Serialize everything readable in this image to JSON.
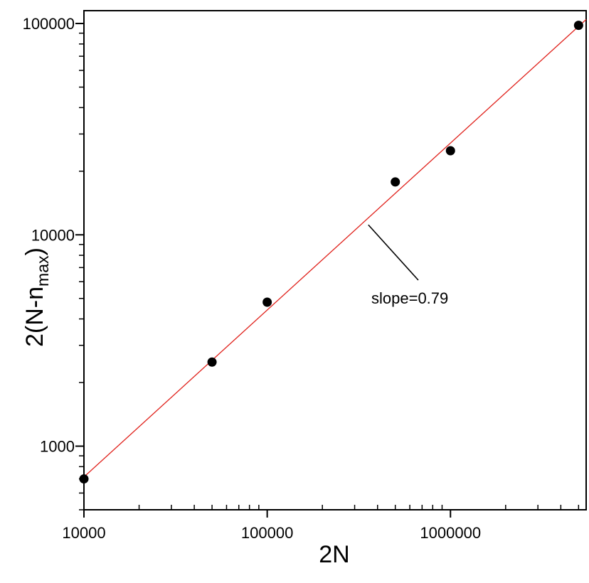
{
  "chart_data": {
    "type": "scatter",
    "title": "",
    "xlabel": "2N",
    "ylabel_main": "2(N-n",
    "ylabel_sub": "max",
    "ylabel_close": ")",
    "x_scale": "log",
    "y_scale": "log",
    "xlim": [
      10000,
      5500000
    ],
    "ylim": [
      500,
      115000
    ],
    "x_ticks": [
      {
        "value": 10000,
        "label": "10000"
      },
      {
        "value": 100000,
        "label": "100000"
      },
      {
        "value": 1000000,
        "label": "1000000"
      }
    ],
    "y_ticks": [
      {
        "value": 1000,
        "label": "1000"
      },
      {
        "value": 10000,
        "label": "10000"
      },
      {
        "value": 100000,
        "label": "100000"
      }
    ],
    "grid": false,
    "legend": "none",
    "series": [
      {
        "type": "scatter",
        "color": "#000000",
        "points": [
          {
            "x": 10000,
            "y": 700
          },
          {
            "x": 50000,
            "y": 2500
          },
          {
            "x": 100000,
            "y": 4800
          },
          {
            "x": 500000,
            "y": 17800
          },
          {
            "x": 1000000,
            "y": 25000
          },
          {
            "x": 5000000,
            "y": 98000
          }
        ]
      },
      {
        "type": "line",
        "color": "#e0201a",
        "points": [
          {
            "x": 10000,
            "y": 715
          },
          {
            "x": 5500000,
            "y": 104500
          }
        ]
      }
    ],
    "annotations": [
      {
        "text": "slope=0.79",
        "points_at": {
          "x": 350000,
          "y": 11500
        }
      }
    ]
  }
}
